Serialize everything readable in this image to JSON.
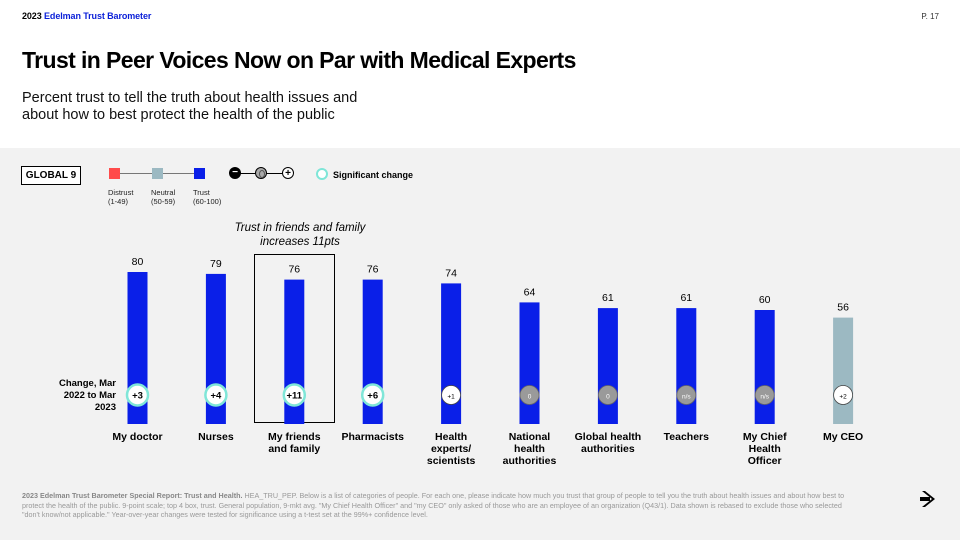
{
  "header": {
    "brand_year": "2023",
    "brand_name": "Edelman Trust Barometer",
    "page": "P. 17"
  },
  "title": "Trust in Peer Voices Now on Par with Medical Experts",
  "subtitle": "Percent trust to tell the truth about health issues and about how to best protect the health of the public",
  "region_label": "GLOBAL 9",
  "legend": {
    "distrust": {
      "label": "Distrust",
      "range": "(1-49)",
      "color": "#ff4b4b"
    },
    "neutral": {
      "label": "Neutral",
      "range": "(50-59)",
      "color": "#9cb9c2"
    },
    "trust": {
      "label": "Trust",
      "range": "(60-100)",
      "color": "#0a1fe8"
    },
    "symbols": {
      "minus": "−",
      "plus": "+"
    },
    "significant_label": "Significant change",
    "significant_color": "#7fe6d8"
  },
  "callout": "Trust in friends and family increases 11pts",
  "change_label": "Change, Mar 2022 to Mar 2023",
  "chart_data": {
    "type": "bar",
    "categories": [
      "My doctor",
      "Nurses",
      "My friends and family",
      "Pharmacists",
      "Health experts/ scientists",
      "National health authorities",
      "Global health authorities",
      "Teachers",
      "My Chief Health Officer",
      "My CEO"
    ],
    "values": [
      80,
      79,
      76,
      76,
      74,
      64,
      61,
      61,
      60,
      56
    ],
    "changes": [
      "+3",
      "+4",
      "+11",
      "+6",
      "+1",
      "0",
      "0",
      "n/s",
      "n/s",
      "+2"
    ],
    "change_significant": [
      true,
      true,
      true,
      true,
      false,
      false,
      false,
      false,
      false,
      false
    ],
    "change_kind": [
      "plus",
      "plus",
      "plus",
      "plus",
      "plus",
      "zero",
      "zero",
      "zero",
      "zero",
      "plus"
    ],
    "ylim": [
      0,
      100
    ]
  },
  "footnote_bold": "2023 Edelman Trust Barometer Special Report: Trust and Health.",
  "footnote": "HEA_TRU_PEP. Below is a list of categories of people. For each one, please indicate how much you trust that group of people to tell you the truth about health issues and about how best to protect the health of the public. 9-point scale; top 4 box, trust. General population, 9-mkt avg. \"My Chief Health Officer\" and \"my CEO\" only asked of those who are an employee of an organization (Q43/1). Data shown is rebased to exclude those who selected \"don't know/not applicable.\" Year-over-year changes were tested for significance using a t-test set at the 99%+ confidence level."
}
